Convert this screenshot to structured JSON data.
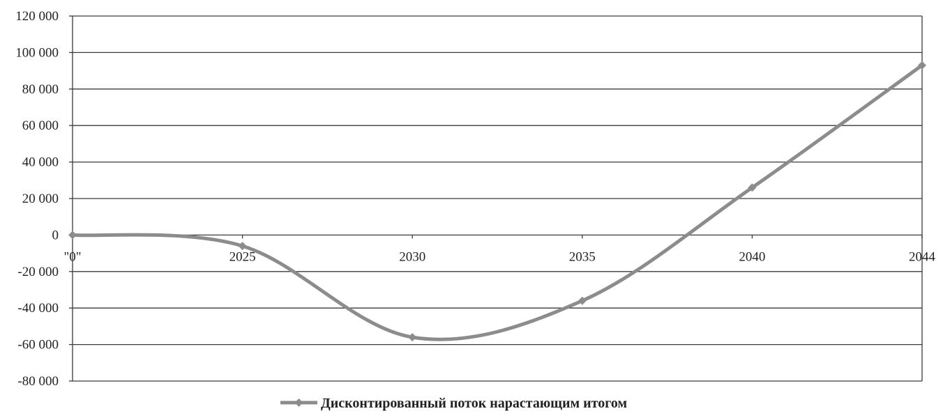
{
  "chart_data": {
    "type": "line",
    "smooth": true,
    "categories": [
      "\"0\"",
      "2025",
      "2030",
      "2035",
      "2040",
      "2044"
    ],
    "series": [
      {
        "name": "Дисконтированный поток нарастающим итогом",
        "values": [
          0,
          -6000,
          -56000,
          -36000,
          26000,
          93000
        ]
      }
    ],
    "y_tick_labels": [
      "120 000",
      "100 000",
      "80 000",
      "60 000",
      "40 000",
      "20 000",
      "0",
      "-20 000",
      "-40 000",
      "-60 000",
      "-80 000"
    ],
    "ylim": [
      -80000,
      120000
    ],
    "y_step": 20000,
    "grid": "horizontal",
    "legend_position": "bottom-center",
    "title": "",
    "xlabel": "",
    "ylabel": "",
    "line_color": "#8c8c8c",
    "grid_color": "#3a3a3a"
  }
}
